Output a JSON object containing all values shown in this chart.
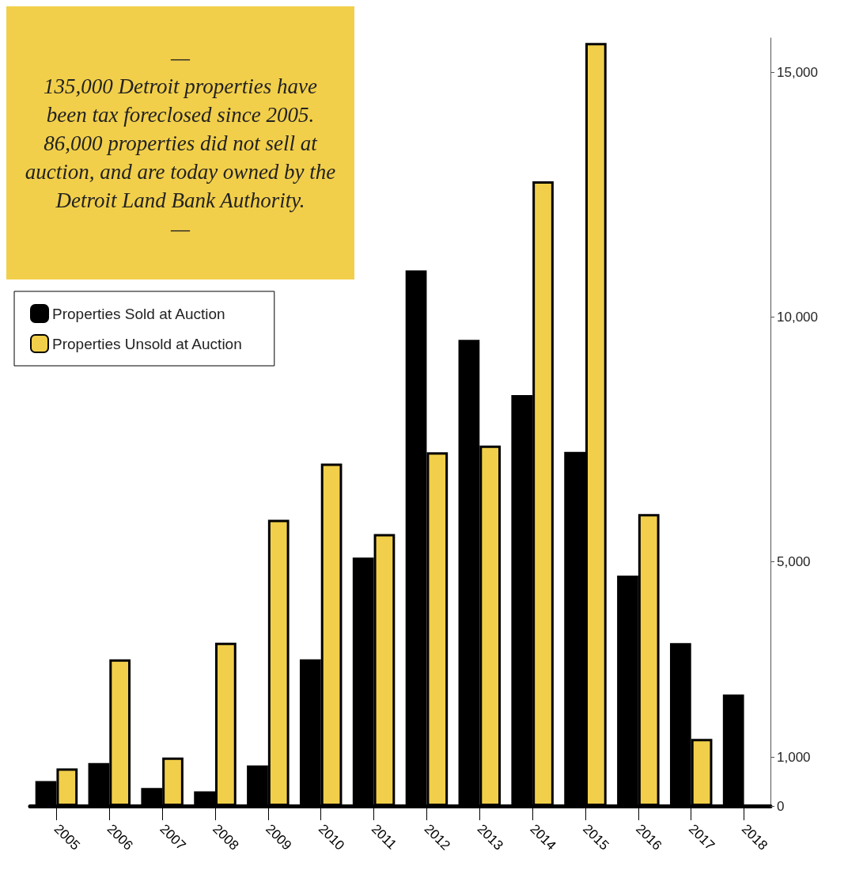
{
  "chart_data": {
    "type": "bar",
    "categories": [
      "2005",
      "2006",
      "2007",
      "2008",
      "2009",
      "2010",
      "2011",
      "2012",
      "2013",
      "2014",
      "2015",
      "2016",
      "2017",
      "2018"
    ],
    "series": [
      {
        "name": "Properties Sold at Auction",
        "color": "#000000",
        "values": [
          510,
          880,
          370,
          300,
          830,
          3000,
          5080,
          10950,
          9530,
          8400,
          7240,
          4710,
          3330,
          2280
        ]
      },
      {
        "name": "Properties Unsold at Auction",
        "color": "#f2cf4a",
        "values": [
          770,
          3000,
          990,
          3340,
          5850,
          7000,
          5560,
          7230,
          7370,
          12770,
          15600,
          5970,
          1370,
          null
        ]
      }
    ],
    "ylim": [
      0,
      15700
    ],
    "yticks": [
      0,
      {
        "value": 1000,
        "label": "1,000"
      },
      {
        "value": 5000,
        "label": "5,000"
      },
      {
        "value": 10000,
        "label": "10,000"
      },
      {
        "value": 15000,
        "label": "15,000"
      }
    ],
    "grid": false,
    "legend": "top left",
    "annotations": [
      "—\n135,000 Detroit properties have been tax foreclosed since 2005. 86,000 properties did not sell at auction, and are today owned by the Detroit Land Bank Authority.\n—"
    ]
  }
}
